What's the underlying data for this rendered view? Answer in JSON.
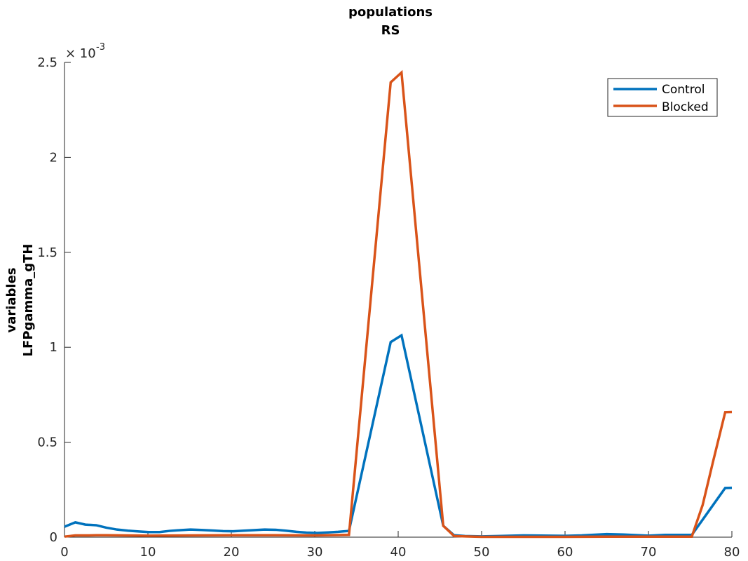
{
  "chart_data": {
    "type": "line",
    "title_lines": [
      "populations",
      "RS"
    ],
    "ylabel_lines": [
      "variables",
      "LFPgamma_gTH"
    ],
    "xlabel": "",
    "xlim": [
      0,
      80
    ],
    "ylim": [
      0,
      0.0025
    ],
    "x_ticks": [
      0,
      10,
      20,
      30,
      40,
      50,
      60,
      70,
      80
    ],
    "y_ticks": [
      0,
      0.0005,
      0.001,
      0.0015,
      0.002,
      0.0025
    ],
    "y_tick_labels": [
      "0",
      "0.5",
      "1",
      "1.5",
      "2",
      "2.5"
    ],
    "y_exponent_base": "× 10",
    "y_exponent_power": "-3",
    "grid": false,
    "legend_placement": "top-right",
    "series": [
      {
        "name": "Control",
        "color": "#0072BD",
        "x": [
          0,
          1.3,
          2.5,
          3.8,
          5,
          6.3,
          7.6,
          8.9,
          10.1,
          11.4,
          12.6,
          13.9,
          15.1,
          16.4,
          17.7,
          19,
          20.2,
          21.5,
          22.7,
          24,
          25.3,
          26.5,
          27.8,
          29,
          30.3,
          31.6,
          32.8,
          34.1,
          39.1,
          40.4,
          45.4,
          46.7,
          48,
          50,
          52,
          55,
          58,
          60,
          62,
          65,
          67,
          70,
          72,
          74,
          75.2,
          79.2,
          80
        ],
        "y": [
          5.5e-05,
          7.8e-05,
          6.6e-05,
          6.3e-05,
          5e-05,
          4e-05,
          3.4e-05,
          3e-05,
          2.7e-05,
          2.7e-05,
          3.3e-05,
          3.7e-05,
          4e-05,
          3.8e-05,
          3.5e-05,
          3.2e-05,
          3.1e-05,
          3.4e-05,
          3.7e-05,
          4e-05,
          3.9e-05,
          3.4e-05,
          2.8e-05,
          2.4e-05,
          2.2e-05,
          2.5e-05,
          2.8e-05,
          3.3e-05,
          0.001027,
          0.001063,
          6e-05,
          1e-05,
          6e-06,
          4e-06,
          6e-06,
          9e-06,
          8e-06,
          7e-06,
          9e-06,
          1.6e-05,
          1.4e-05,
          8e-06,
          1.2e-05,
          1.2e-05,
          1.2e-05,
          0.000259,
          0.00026
        ]
      },
      {
        "name": "Blocked",
        "color": "#D95319",
        "x": [
          0,
          1.3,
          2.5,
          3.8,
          5,
          10,
          15,
          20,
          25,
          30,
          34.1,
          39.1,
          40.4,
          45.4,
          46.7,
          48,
          50,
          55,
          60,
          65,
          70,
          74,
          75.2,
          76.5,
          77.7,
          79.2,
          80
        ],
        "y": [
          3e-06,
          9e-06,
          9e-06,
          1e-05,
          1e-05,
          8e-06,
          9e-06,
          1e-05,
          1e-05,
          9e-06,
          1.2e-05,
          0.002395,
          0.002447,
          6e-05,
          6e-06,
          4e-06,
          2e-06,
          2e-06,
          2e-06,
          3e-06,
          3e-06,
          3e-06,
          3e-06,
          0.00017,
          0.00039,
          0.000658,
          0.000659
        ]
      }
    ]
  }
}
